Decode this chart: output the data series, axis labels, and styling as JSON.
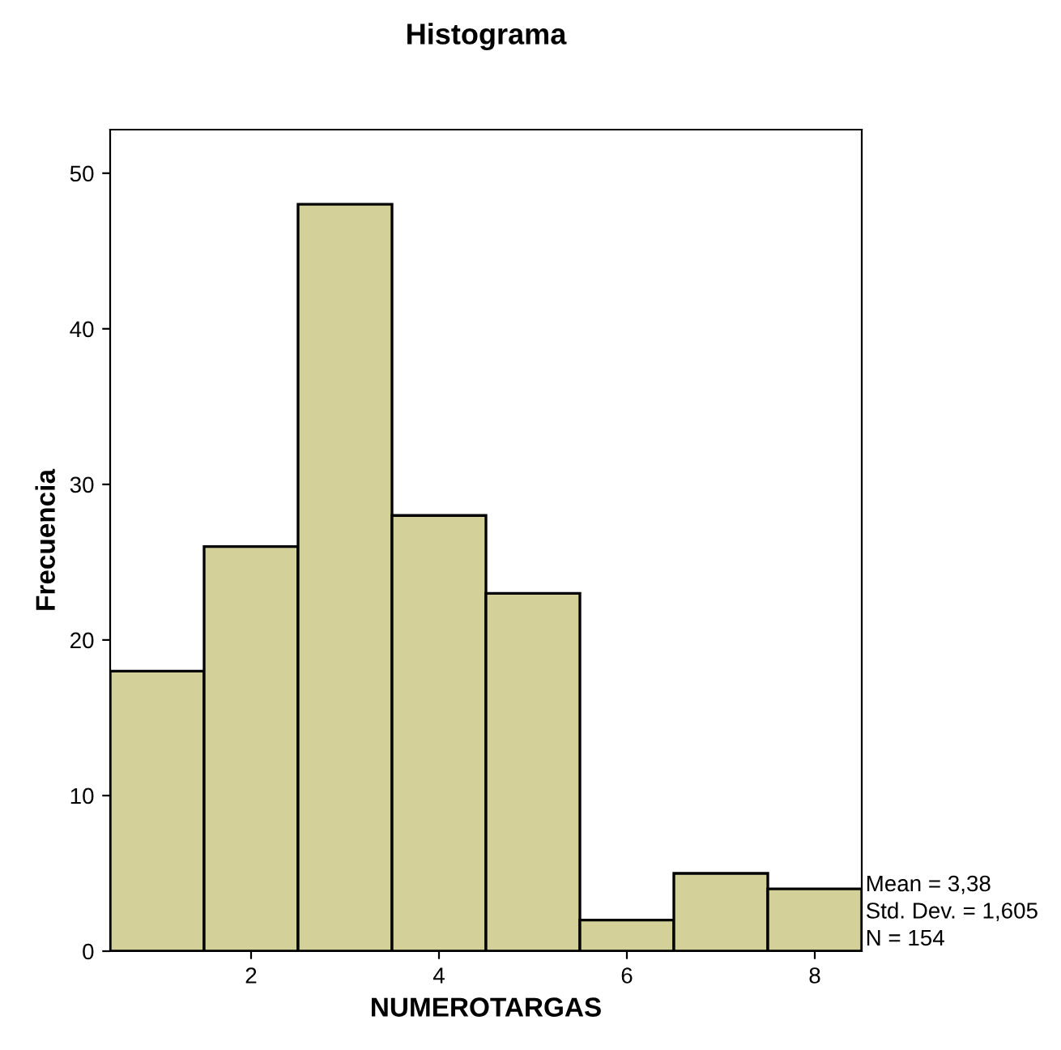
{
  "chart_data": {
    "type": "histogram",
    "title": "Histograma",
    "xlabel": "NUMEROTARGAS",
    "ylabel": "Frecuencia",
    "bins": [
      0.5,
      1.5,
      2.5,
      3.5,
      4.5,
      5.5,
      6.5,
      7.5,
      8.5
    ],
    "values": [
      18,
      26,
      48,
      28,
      23,
      2,
      5,
      4
    ],
    "color": "#d4d09a",
    "xlim": [
      0.5,
      8.5
    ],
    "xticks": [
      2,
      4,
      6,
      8
    ],
    "ylim": [
      0,
      52.8
    ],
    "yticks": [
      0,
      10,
      20,
      30,
      40,
      50
    ],
    "grid": false,
    "annotations": [
      "Mean = 3,38",
      "Std. Dev. = 1,605",
      "N = 154"
    ]
  }
}
